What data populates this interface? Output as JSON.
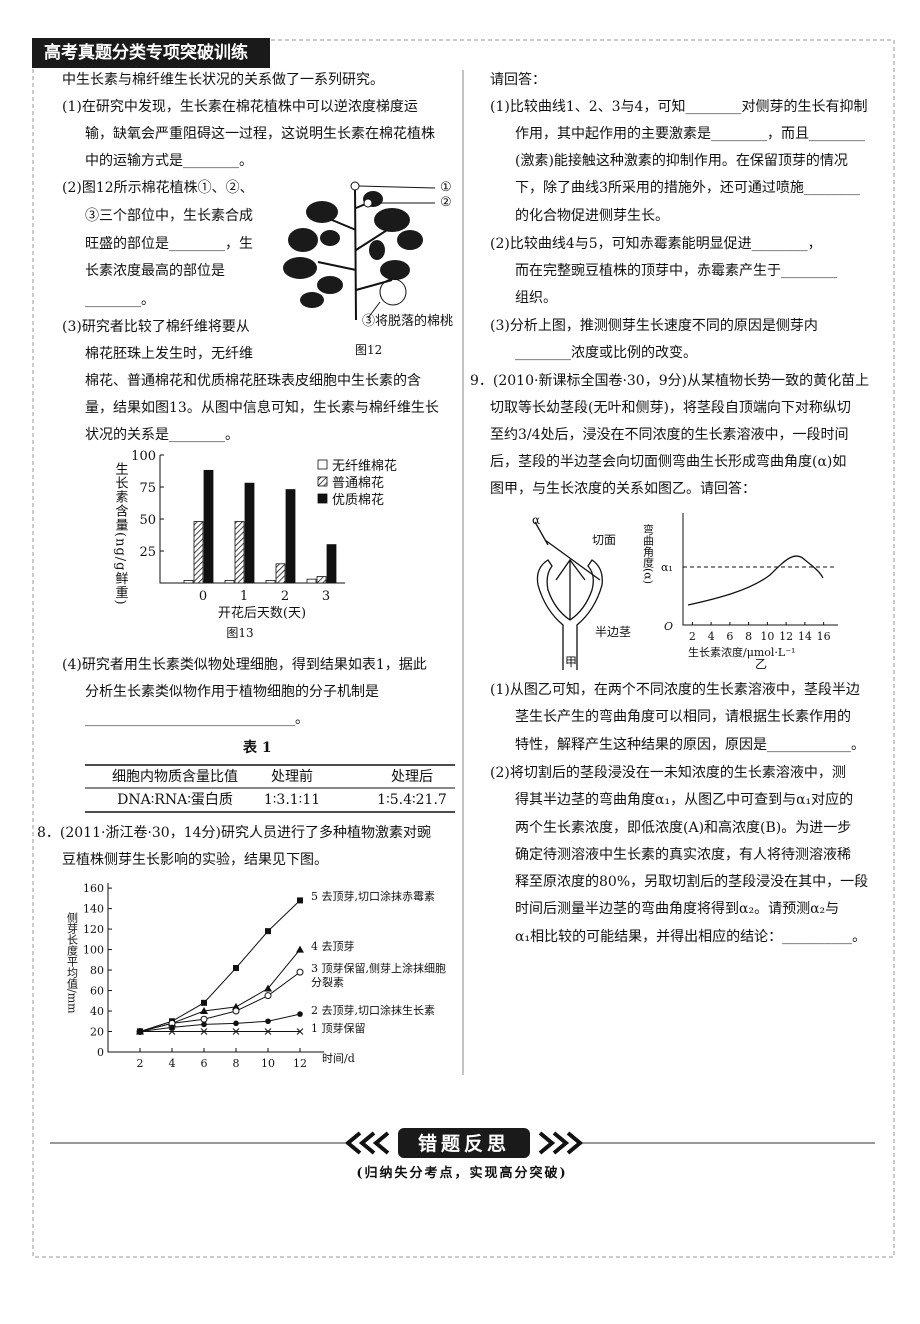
{
  "header": {
    "title": "高考真题分类专项突破训练"
  },
  "left": {
    "intro": "中生长素与棉纤维生长状况的关系做了一系列研究。",
    "q1": [
      "(1)在研究中发现，生长素在棉花植株中可以逆浓度梯度运",
      "输，缺氧会严重阻碍这一过程，这说明生长素在棉花植株",
      "中的运输方式是________。"
    ],
    "q2": [
      "(2)图12所示棉花植株①、②、",
      "③三个部位中，生长素合成",
      "旺盛的部位是________，生",
      "长素浓度最高的部位是",
      "________。"
    ],
    "q3": [
      "(3)研究者比较了棉纤维将要从",
      "棉花胚珠上发生时，无纤维",
      "棉花、普通棉花和优质棉花胚珠表皮细胞中生长素的含",
      "量，结果如图13。从图中信息可知，生长素与棉纤维生长",
      "状况的关系是________。"
    ],
    "q4": [
      "(4)研究者用生长素类似物处理细胞，得到结果如表1，据此",
      "分析生长素类似物作用于植物细胞的分子机制是",
      "______________________________。"
    ],
    "q8": [
      "8．(2011·浙江卷·30，14分)研究人员进行了多种植物激素对豌",
      "豆植株侧芽生长影响的实验，结果见下图。"
    ]
  },
  "right": {
    "intro": "请回答：",
    "q1": [
      "(1)比较曲线1、2、3与4，可知________对侧芽的生长有抑制",
      "作用，其中起作用的主要激素是________，而且________",
      "(激素)能接触这种激素的抑制作用。在保留顶芽的情况",
      "下，除了曲线3所采用的措施外，还可通过喷施________",
      "的化合物促进侧芽生长。"
    ],
    "q2": [
      "(2)比较曲线4与5，可知赤霉素能明显促进________，",
      "而在完整豌豆植株的顶芽中，赤霉素产生于________",
      "组织。"
    ],
    "q3": [
      "(3)分析上图，推测侧芽生长速度不同的原因是侧芽内",
      "________浓度或比例的改变。"
    ],
    "q9": [
      "9．(2010·新课标全国卷·30，9分)从某植物长势一致的黄化苗上",
      "切取等长幼茎段(无叶和侧芽)，将茎段自顶端向下对称纵切",
      "至约3/4处后，浸没在不同浓度的生长素溶液中，一段时间",
      "后，茎段的半边茎会向切面侧弯曲生长形成弯曲角度(α)如",
      "图甲，与生长浓度的关系如图乙。请回答："
    ],
    "q9_1": [
      "(1)从图乙可知，在两个不同浓度的生长素溶液中，茎段半边",
      "茎生长产生的弯曲角度可以相同，请根据生长素作用的",
      "特性，解释产生这种结果的原因，原因是____________。"
    ],
    "q9_2": [
      "(2)将切割后的茎段浸没在一未知浓度的生长素溶液中，测",
      "得其半边茎的弯曲角度α₁，从图乙中可查到与α₁对应的",
      "两个生长素浓度，即低浓度(A)和高浓度(B)。为进一步",
      "确定待测溶液中生长素的真实浓度，有人将待测溶液稀",
      "释至原浓度的80%，另取切割后的茎段浸没在其中，一段",
      "时间后测量半边茎的弯曲角度将得到α₂。请预测α₂与",
      "α₁相比较的可能结果，并得出相应的结论：__________。"
    ]
  },
  "figures": {
    "fig12": {
      "labels": [
        "①",
        "②",
        "③将脱落的棉桃"
      ],
      "caption": "图12"
    },
    "fig13": {
      "type": "bar",
      "ylabel": "生长素含量(ng/g鲜重)",
      "xlabel": "开花后天数(天)",
      "caption": "图13",
      "categories": [
        "0",
        "1",
        "2",
        "3"
      ],
      "ylim": [
        0,
        100
      ],
      "yticks": [
        25,
        50,
        75,
        100
      ],
      "series": [
        {
          "name": "无纤维棉花",
          "color": "#ffffff",
          "values": [
            2,
            2,
            2,
            3
          ]
        },
        {
          "name": "普通棉花",
          "color": "#555555",
          "pattern": "hatch",
          "values": [
            48,
            48,
            15,
            5
          ]
        },
        {
          "name": "优质棉花",
          "color": "#111111",
          "values": [
            88,
            78,
            73,
            30
          ]
        }
      ]
    },
    "fig8": {
      "type": "line",
      "ylabel": "侧芽长度平均值/mm",
      "xlabel": "时间/d",
      "x": [
        2,
        4,
        6,
        8,
        10,
        12
      ],
      "xlim": [
        0,
        13.5
      ],
      "xticks": [
        2,
        4,
        6,
        8,
        10,
        12
      ],
      "ylim": [
        0,
        165
      ],
      "yticks": [
        0,
        20,
        40,
        60,
        80,
        100,
        120,
        140,
        160
      ],
      "series": [
        {
          "name": "5 去顶芽,切口涂抹赤霉素",
          "marker": "square",
          "color": "#111111",
          "values": [
            20,
            30,
            48,
            82,
            118,
            148
          ]
        },
        {
          "name": "4 去顶芽",
          "marker": "triangle",
          "color": "#111111",
          "values": [
            20,
            28,
            40,
            44,
            62,
            100
          ]
        },
        {
          "name": "3 顶芽保留,侧芽上涂抹细胞分裂素",
          "marker": "circle",
          "color": "#111111",
          "values": [
            20,
            28,
            32,
            40,
            55,
            78
          ]
        },
        {
          "name": "2 去顶芽,切口涂抹生长素",
          "marker": "dot",
          "color": "#111111",
          "values": [
            20,
            24,
            27,
            28,
            30,
            37
          ]
        },
        {
          "name": "1 顶芽保留",
          "marker": "x",
          "color": "#111111",
          "values": [
            20,
            20,
            20,
            20,
            20,
            20
          ]
        }
      ]
    },
    "fig9": {
      "jia": {
        "labels": [
          "α",
          "切面",
          "半边茎"
        ],
        "caption": "甲"
      },
      "yi": {
        "ylabel": "弯曲角度(α)",
        "alpha": "α₁",
        "origin": "O",
        "xlabel": "生长素浓度/μmol·L⁻¹",
        "caption": "乙",
        "xlim": [
          1,
          17
        ],
        "xticks": [
          2,
          4,
          6,
          8,
          10,
          12,
          14,
          16
        ]
      }
    }
  },
  "table": {
    "title": "表 1",
    "header": [
      "细胞内物质含量比值",
      "处理前",
      "处理后"
    ],
    "rows": [
      [
        "DNA∶RNA∶蛋白质",
        "1∶3.1∶11",
        "1∶5.4∶21.7"
      ]
    ]
  },
  "footer": {
    "banner": "错题反思",
    "subtitle": "(归纳失分考点，实现高分突破)"
  }
}
